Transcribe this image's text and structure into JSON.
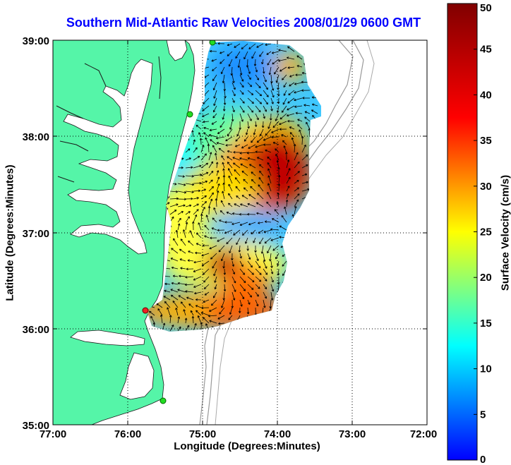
{
  "title": "Southern Mid-Atlantic Raw Velocities 2008/01/29 0600 GMT",
  "map": {
    "xlabel": "Longitude (Degrees:Minutes)",
    "ylabel": "Latitude (Degrees:Minutes)",
    "x_ticks": [
      "77:00",
      "76:00",
      "75:00",
      "74:00",
      "73:00",
      "72:00"
    ],
    "y_ticks": [
      "39:00",
      "38:00",
      "37:00",
      "36:00",
      "35:00"
    ],
    "lon_range": [
      -77,
      -72
    ],
    "lat_range": [
      35,
      39
    ],
    "land_color": "#55f5a8",
    "station_colors": [
      "#22dd22",
      "#ee2222"
    ],
    "grid": true
  },
  "colorbar": {
    "label": "Surface Velocity (cm/s)",
    "ticks": [
      "0",
      "5",
      "10",
      "15",
      "20",
      "25",
      "30",
      "35",
      "40",
      "45",
      "50"
    ],
    "range": [
      0,
      50
    ],
    "colors": [
      "#0000ff",
      "#00ffff",
      "#ffff00",
      "#ff0000",
      "#800000"
    ]
  }
}
